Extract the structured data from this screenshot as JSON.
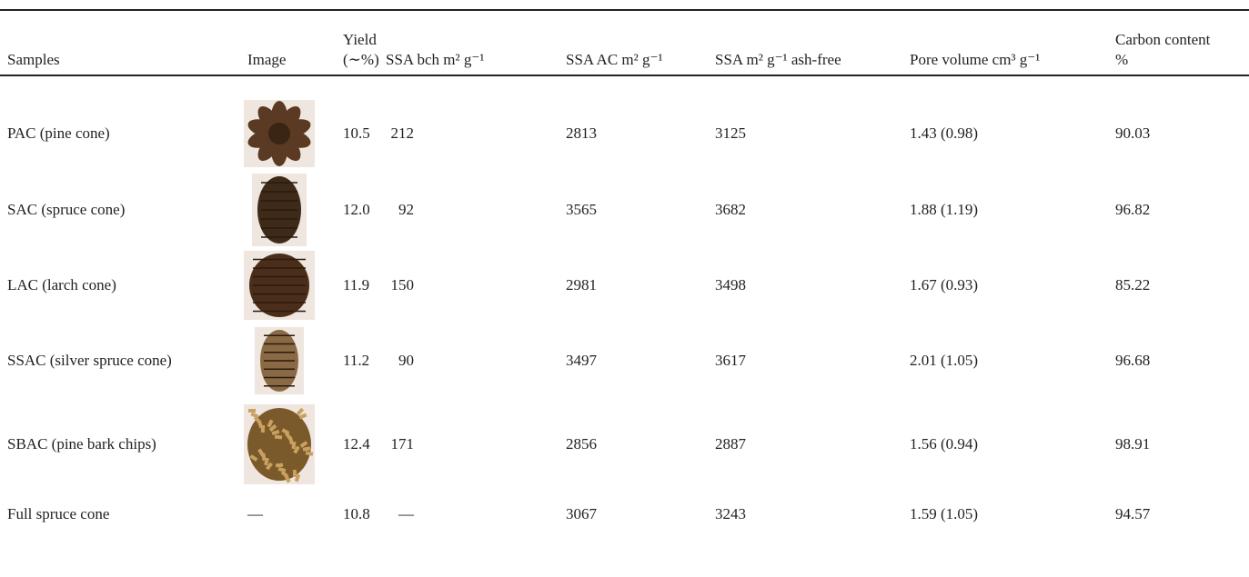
{
  "table": {
    "headers": [
      "Samples",
      "Image",
      "Yield",
      "(∼%)",
      "SSA bch m² g⁻¹",
      "SSA AC m² g⁻¹",
      "SSA m² g⁻¹ ash-free",
      "Pore volume cm³ g⁻¹",
      "Carbon content",
      "%"
    ],
    "rows": [
      {
        "sample": "PAC (pine cone)",
        "yield": "10.5",
        "ssa_bch": "212",
        "ssa_ac": "2813",
        "ssa_ash_free": "3125",
        "pore_volume": "1.43 (0.98)",
        "carbon": "90.03"
      },
      {
        "sample": "SAC (spruce cone)",
        "yield": "12.0",
        "ssa_bch": "92",
        "ssa_ac": "3565",
        "ssa_ash_free": "3682",
        "pore_volume": "1.88 (1.19)",
        "carbon": "96.82"
      },
      {
        "sample": "LAC (larch cone)",
        "yield": "11.9",
        "ssa_bch": "150",
        "ssa_ac": "2981",
        "ssa_ash_free": "3498",
        "pore_volume": "1.67 (0.93)",
        "carbon": "85.22"
      },
      {
        "sample": "SSAC (silver spruce cone)",
        "yield": "11.2",
        "ssa_bch": "90",
        "ssa_ac": "3497",
        "ssa_ash_free": "3617",
        "pore_volume": "2.01 (1.05)",
        "carbon": "96.68"
      },
      {
        "sample": "SBAC (pine bark chips)",
        "yield": "12.4",
        "ssa_bch": "171",
        "ssa_ac": "2856",
        "ssa_ash_free": "2887",
        "pore_volume": "1.56 (0.94)",
        "carbon": "98.91"
      },
      {
        "sample": "Full spruce cone",
        "image": "—",
        "yield": "10.8",
        "ssa_bch": "—",
        "ssa_ac": "3067",
        "ssa_ash_free": "3243",
        "pore_volume": "1.59 (1.05)",
        "carbon": "94.57"
      }
    ]
  }
}
